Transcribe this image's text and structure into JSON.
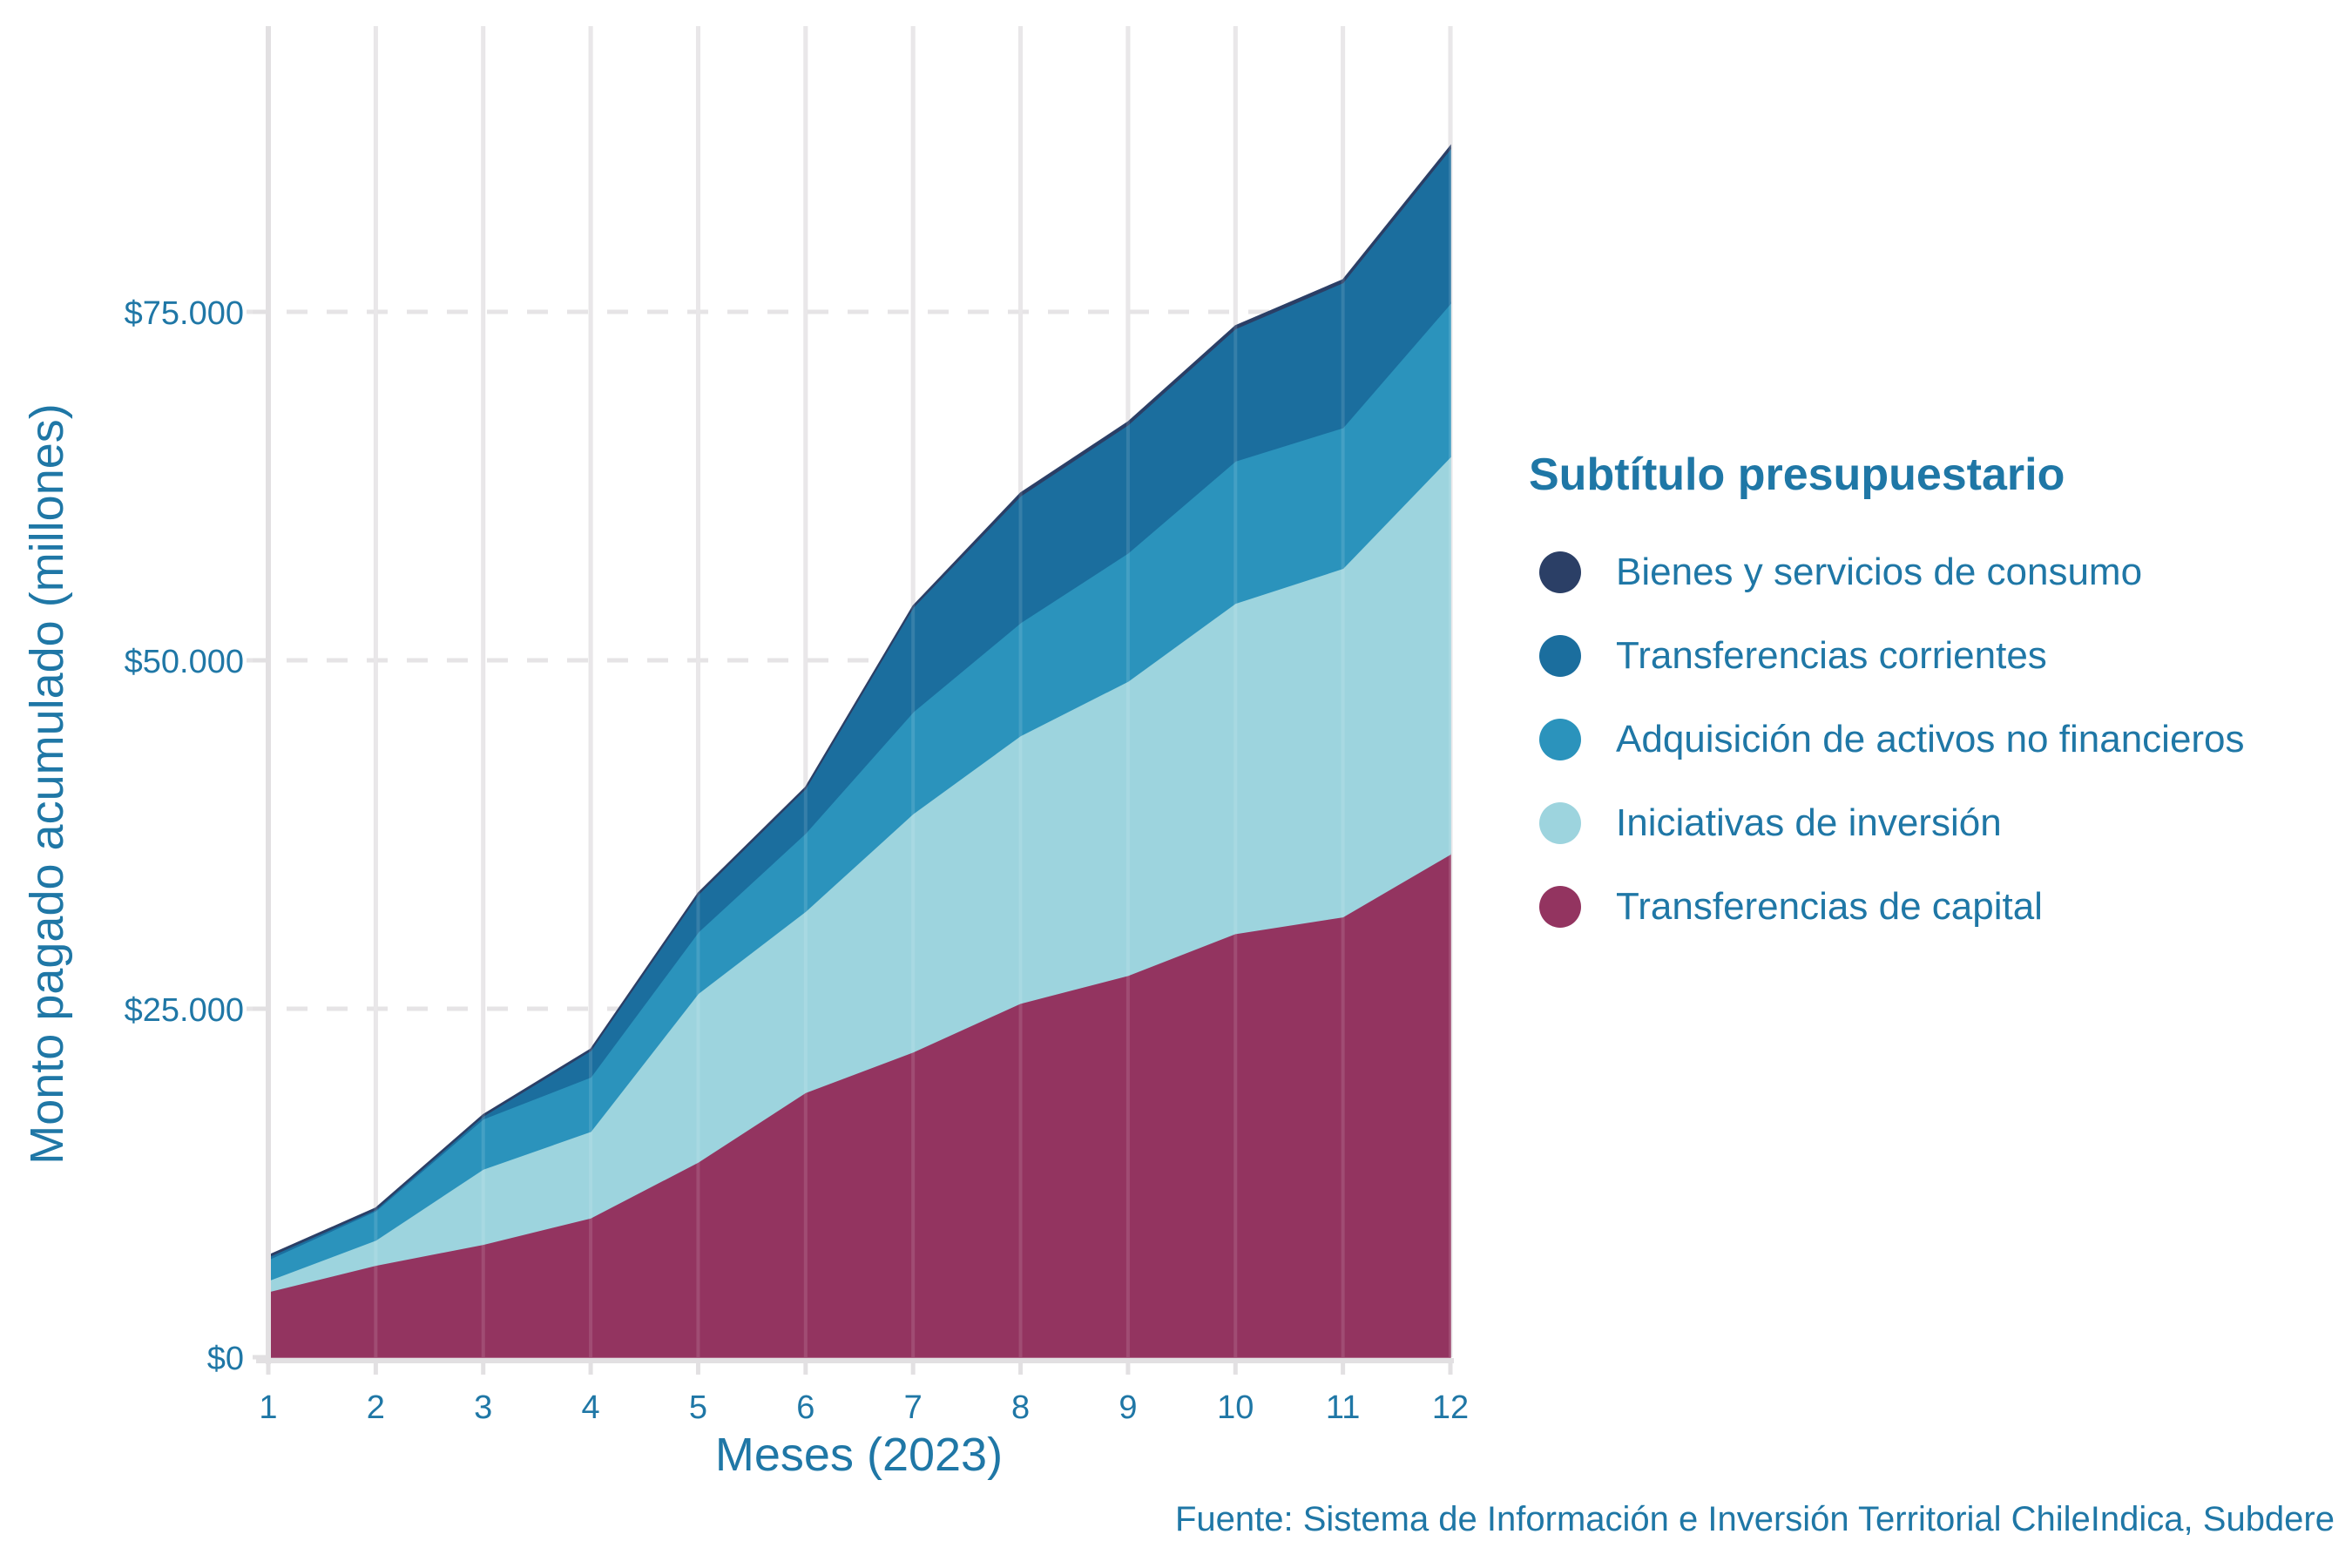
{
  "chart_data": {
    "type": "area",
    "stacked": true,
    "title": "",
    "xlabel": "Meses (2023)",
    "ylabel": "Monto pagado acumulado (millones)",
    "x": [
      1,
      2,
      3,
      4,
      5,
      6,
      7,
      8,
      9,
      10,
      11,
      12
    ],
    "x_tick_labels": [
      "1",
      "2",
      "3",
      "4",
      "5",
      "6",
      "7",
      "8",
      "9",
      "10",
      "11",
      "12"
    ],
    "ylim": [
      0,
      95000
    ],
    "y_ticks": [
      0,
      25000,
      50000,
      75000
    ],
    "y_tick_labels": [
      "$0",
      "$25.000",
      "$50.000",
      "$75.000"
    ],
    "grid": true,
    "legend": {
      "title": "Subtítulo presupuestario",
      "placement": "right"
    },
    "series": [
      {
        "name": "Transferencias de capital",
        "color": "#933460",
        "values": [
          4700,
          6600,
          8100,
          10000,
          14000,
          19000,
          21900,
          25400,
          27400,
          30400,
          31600,
          36100
        ]
      },
      {
        "name": "Iniciativas de inversión",
        "color": "#9dd4de",
        "values": [
          800,
          1800,
          5400,
          6200,
          12100,
          13000,
          17100,
          19200,
          21100,
          23700,
          25000,
          28500
        ]
      },
      {
        "name": "Adquisición de activos no financieros",
        "color": "#2b93bc",
        "values": [
          1500,
          2100,
          3600,
          3900,
          4400,
          5600,
          7300,
          8100,
          9200,
          10200,
          10100,
          11000
        ]
      },
      {
        "name": "Transferencias corrientes",
        "color": "#1b6e9e",
        "values": [
          200,
          100,
          200,
          1900,
          2700,
          3200,
          7500,
          9100,
          9200,
          9500,
          10400,
          11100
        ]
      },
      {
        "name": "Bienes y servicios de consumo",
        "color": "#2b3f66",
        "values": [
          100,
          100,
          100,
          100,
          100,
          100,
          100,
          200,
          200,
          200,
          200,
          200
        ]
      }
    ],
    "caption": "Fuente: Sistema de Información e Inversión Territorial ChileIndica, Subdere"
  },
  "legend_items": [
    {
      "label": "Bienes y servicios de consumo",
      "color": "#2b3f66"
    },
    {
      "label": "Transferencias corrientes",
      "color": "#1b6e9e"
    },
    {
      "label": "Adquisición de activos no financieros",
      "color": "#2b93bc"
    },
    {
      "label": "Iniciativas de inversión",
      "color": "#9dd4de"
    },
    {
      "label": "Transferencias de capital",
      "color": "#933460"
    }
  ],
  "source": "Fuente: Sistema de Información e Inversión Territorial ChileIndica, Subdere"
}
